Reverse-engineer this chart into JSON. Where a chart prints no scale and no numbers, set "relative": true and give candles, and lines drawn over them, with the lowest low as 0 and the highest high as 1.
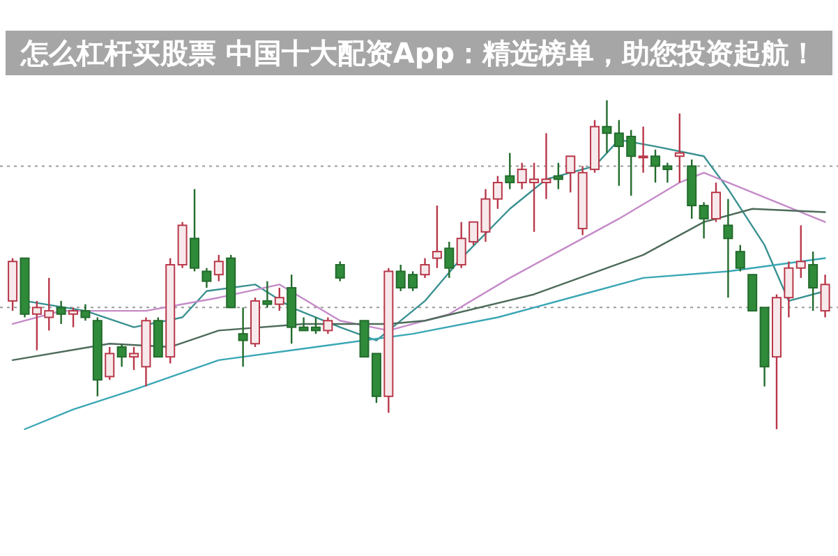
{
  "chart_data": {
    "type": "candlestick",
    "title": "怎么杠杆买股票 中国十大配资App：精选榜单，助您投资起航！",
    "relative": true,
    "categories": [
      null,
      null,
      null,
      null,
      null,
      null,
      null,
      null,
      null,
      null,
      null,
      null,
      null,
      null,
      null,
      null,
      null,
      null,
      null,
      null,
      null,
      null,
      null,
      null,
      null,
      null,
      null,
      null,
      null,
      null,
      null,
      null,
      null,
      null,
      null,
      null,
      null,
      null,
      null,
      null,
      null,
      null,
      null,
      null,
      null,
      null,
      null,
      null,
      null,
      null,
      null,
      null,
      null,
      null,
      null,
      null,
      null,
      null,
      null,
      null,
      null,
      null,
      null,
      null,
      null,
      null,
      null,
      null
    ],
    "ohlc": [
      [
        0.39,
        0.52,
        0.36,
        0.51
      ],
      [
        0.52,
        0.52,
        0.34,
        0.35
      ],
      [
        0.35,
        0.39,
        0.24,
        0.37
      ],
      [
        0.34,
        0.46,
        0.3,
        0.36
      ],
      [
        0.37,
        0.39,
        0.32,
        0.35
      ],
      [
        0.35,
        0.37,
        0.31,
        0.36
      ],
      [
        0.36,
        0.38,
        0.33,
        0.34
      ],
      [
        0.33,
        0.34,
        0.1,
        0.15
      ],
      [
        0.16,
        0.25,
        0.15,
        0.23
      ],
      [
        0.25,
        0.26,
        0.19,
        0.22
      ],
      [
        0.22,
        0.25,
        0.18,
        0.23
      ],
      [
        0.19,
        0.34,
        0.13,
        0.33
      ],
      [
        0.33,
        0.34,
        0.22,
        0.22
      ],
      [
        0.22,
        0.52,
        0.2,
        0.5
      ],
      [
        0.5,
        0.63,
        0.49,
        0.62
      ],
      [
        0.58,
        0.73,
        0.48,
        0.49
      ],
      [
        0.48,
        0.49,
        0.43,
        0.45
      ],
      [
        0.47,
        0.53,
        0.45,
        0.51
      ],
      [
        0.52,
        0.53,
        0.37,
        0.37
      ],
      [
        0.29,
        0.37,
        0.19,
        0.27
      ],
      [
        0.26,
        0.4,
        0.25,
        0.39
      ],
      [
        0.39,
        0.45,
        0.37,
        0.38
      ],
      [
        0.38,
        0.43,
        0.36,
        0.4
      ],
      [
        0.43,
        0.47,
        0.26,
        0.31
      ],
      [
        0.31,
        0.34,
        0.3,
        0.3
      ],
      [
        0.31,
        0.34,
        0.29,
        0.3
      ],
      [
        0.3,
        0.34,
        0.29,
        0.33
      ],
      [
        0.5,
        0.51,
        0.45,
        0.46
      ],
      null,
      [
        0.33,
        0.33,
        0.22,
        0.22
      ],
      [
        0.23,
        0.23,
        0.08,
        0.1
      ],
      [
        0.1,
        0.49,
        0.05,
        0.48
      ],
      [
        0.48,
        0.5,
        0.42,
        0.43
      ],
      [
        0.47,
        0.48,
        0.42,
        0.43
      ],
      [
        0.47,
        0.52,
        0.46,
        0.5
      ],
      [
        0.52,
        0.68,
        0.49,
        0.54
      ],
      [
        0.55,
        0.57,
        0.46,
        0.49
      ],
      [
        0.5,
        0.63,
        0.49,
        0.58
      ],
      [
        0.57,
        0.63,
        0.56,
        0.63
      ],
      [
        0.6,
        0.73,
        0.57,
        0.7
      ],
      [
        0.7,
        0.77,
        0.67,
        0.75
      ],
      [
        0.77,
        0.84,
        0.73,
        0.75
      ],
      [
        0.75,
        0.81,
        0.73,
        0.79
      ],
      [
        0.75,
        0.81,
        0.6,
        0.76
      ],
      [
        0.75,
        0.9,
        0.7,
        0.76
      ],
      [
        0.77,
        0.81,
        0.73,
        0.76
      ],
      [
        0.78,
        0.83,
        0.72,
        0.83
      ],
      [
        0.61,
        0.8,
        0.59,
        0.78
      ],
      [
        0.79,
        0.94,
        0.78,
        0.92
      ],
      [
        0.92,
        1.0,
        0.84,
        0.9
      ],
      [
        0.9,
        0.94,
        0.74,
        0.86
      ],
      [
        0.89,
        0.91,
        0.71,
        0.83
      ],
      [
        0.83,
        0.92,
        0.78,
        0.83
      ],
      [
        0.83,
        0.85,
        0.75,
        0.8
      ],
      [
        0.8,
        0.81,
        0.75,
        0.79
      ],
      [
        0.83,
        0.96,
        0.75,
        0.84
      ],
      [
        0.8,
        0.82,
        0.64,
        0.68
      ],
      [
        0.68,
        0.69,
        0.58,
        0.64
      ],
      [
        0.64,
        0.75,
        0.63,
        0.72
      ],
      [
        0.62,
        0.7,
        0.4,
        0.58
      ],
      [
        0.54,
        0.56,
        0.48,
        0.49
      ],
      [
        0.47,
        0.47,
        0.36,
        0.36
      ],
      [
        0.37,
        0.37,
        0.13,
        0.19
      ],
      [
        0.22,
        0.41,
        0.0,
        0.4
      ],
      [
        0.4,
        0.51,
        0.34,
        0.49
      ],
      [
        0.49,
        0.62,
        0.46,
        0.51
      ],
      [
        0.5,
        0.54,
        0.36,
        0.43
      ],
      [
        0.36,
        0.47,
        0.34,
        0.44
      ]
    ],
    "series": [
      {
        "type": "line",
        "color": "#3a9090",
        "values": [
          null,
          0.39,
          null,
          null,
          null,
          null,
          0.36,
          null,
          null,
          null,
          0.31,
          null,
          null,
          null,
          0.34,
          null,
          0.42,
          null,
          null,
          null,
          0.44,
          null,
          null,
          0.37,
          null,
          null,
          null,
          0.31,
          null,
          null,
          0.27,
          null,
          null,
          null,
          0.39,
          null,
          null,
          0.52,
          null,
          null,
          null,
          0.67,
          null,
          null,
          0.76,
          null,
          null,
          null,
          0.8,
          null,
          0.88,
          null,
          null,
          0.86,
          null,
          null,
          null,
          0.83,
          null,
          0.73,
          null,
          null,
          0.56,
          null,
          0.39,
          null,
          null,
          0.42
        ]
      },
      {
        "type": "line",
        "color": "#c58ac8",
        "values": [
          0.32,
          null,
          null,
          null,
          0.36,
          null,
          null,
          null,
          null,
          null,
          null,
          0.36,
          null,
          null,
          null,
          null,
          null,
          0.4,
          null,
          null,
          null,
          null,
          0.44,
          null,
          null,
          null,
          null,
          0.33,
          null,
          null,
          null,
          0.3,
          null,
          null,
          null,
          null,
          0.35,
          null,
          null,
          null,
          null,
          0.46,
          null,
          null,
          null,
          0.54,
          null,
          null,
          null,
          null,
          0.64,
          null,
          null,
          null,
          null,
          0.75,
          null,
          0.78,
          null,
          null,
          null,
          0.72,
          null,
          null,
          null,
          null,
          null,
          0.63
        ]
      },
      {
        "type": "line",
        "color": "#4d6b5a",
        "values": [
          0.21,
          null,
          null,
          null,
          null,
          null,
          null,
          null,
          0.26,
          null,
          null,
          null,
          null,
          0.25,
          null,
          null,
          null,
          0.3,
          null,
          null,
          null,
          null,
          null,
          null,
          0.32,
          null,
          null,
          null,
          null,
          null,
          null,
          0.32,
          null,
          null,
          0.33,
          null,
          null,
          null,
          null,
          null,
          null,
          null,
          null,
          0.41,
          null,
          null,
          null,
          null,
          null,
          null,
          null,
          null,
          0.53,
          null,
          null,
          null,
          null,
          0.63,
          null,
          null,
          null,
          0.67,
          null,
          null,
          null,
          null,
          null,
          0.66
        ]
      },
      {
        "type": "line",
        "color": "#3aa7b5",
        "values": [
          null,
          0.0,
          null,
          null,
          null,
          0.06,
          null,
          null,
          null,
          null,
          0.12,
          null,
          null,
          null,
          null,
          null,
          null,
          0.21,
          null,
          null,
          null,
          null,
          null,
          null,
          null,
          0.25,
          null,
          null,
          null,
          null,
          null,
          null,
          null,
          0.29,
          null,
          null,
          null,
          null,
          null,
          null,
          0.34,
          null,
          null,
          null,
          null,
          null,
          null,
          0.41,
          null,
          null,
          null,
          null,
          0.46,
          null,
          null,
          null,
          null,
          null,
          null,
          0.48,
          null,
          null,
          null,
          null,
          null,
          null,
          null,
          0.52
        ]
      }
    ],
    "ref_lines": [
      {
        "axis": "y",
        "value": 0.8,
        "color": "#9a9a9a",
        "line_style": "dotted"
      },
      {
        "axis": "y",
        "value": 0.37,
        "color": "#9a9a9a",
        "line_style": "dotted"
      }
    ]
  }
}
